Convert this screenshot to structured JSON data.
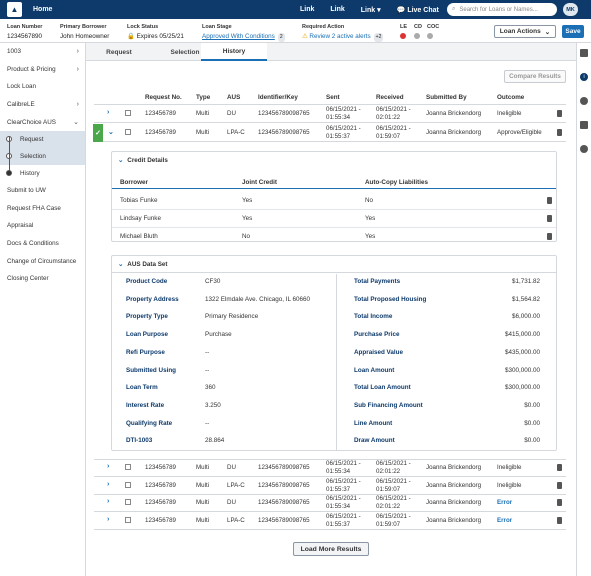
{
  "topbar": {
    "home": "Home",
    "links": [
      "Link",
      "Link",
      "Link",
      "Live Chat"
    ],
    "search_placeholder": "Search for Loans or Names...",
    "avatar": "MK"
  },
  "loan": {
    "number_label": "Loan Number",
    "number": "1234567890",
    "borrower_label": "Primary Borrower",
    "borrower": "John Homeowner",
    "lock_label": "Lock Status",
    "lock": "Expires 05/25/21",
    "stage_label": "Loan Stage",
    "stage": "Approved With Conditions",
    "stage_count": "2",
    "required_label": "Required Action",
    "required": "Review 2 active alerts",
    "required_count": "+2",
    "le": "LE",
    "cd": "CD",
    "coc": "COC",
    "actions": "Loan Actions",
    "save": "Save"
  },
  "sidebar": {
    "items": [
      {
        "label": "1003",
        "chev": "›"
      },
      {
        "label": "Product & Pricing",
        "chev": "›"
      },
      {
        "label": "Lock Loan",
        "chev": ""
      },
      {
        "label": "CalibreLE",
        "chev": "›"
      },
      {
        "label": "ClearChoice AUS",
        "chev": "⌄"
      }
    ],
    "subitems": [
      "Request",
      "Selection",
      "History"
    ],
    "items2": [
      "Submit to UW",
      "Request FHA Case",
      "Appraisal",
      "Docs & Conditions",
      "Change of Circumstance",
      "Closing Center"
    ]
  },
  "tabs": [
    "Request",
    "Selection",
    "History"
  ],
  "compare": "Compare Results",
  "columns": [
    "Request No.",
    "Type",
    "AUS",
    "Identifier/Key",
    "Sent",
    "Received",
    "Submitted By",
    "Outcome"
  ],
  "rows_top": [
    {
      "req": "123456789",
      "type": "Multi",
      "aus": "DU",
      "key": "123456789098765",
      "sent1": "06/15/2021 -",
      "sent2": "01:55:34",
      "rec1": "06/15/2021 -",
      "rec2": "02:01:22",
      "by": "Joanna Brickendorg",
      "outcome": "Ineligible"
    },
    {
      "req": "123456789",
      "type": "Multi",
      "aus": "LPA-C",
      "key": "123456789098765",
      "sent1": "06/15/2021 -",
      "sent2": "01:55:37",
      "rec1": "06/15/2021 -",
      "rec2": "01:59:07",
      "by": "Joanna Brickendorg",
      "outcome": "Approve/Eligible"
    }
  ],
  "credit": {
    "title": "Credit Details",
    "cols": [
      "Borrower",
      "Joint Credit",
      "Auto-Copy Liabilities"
    ],
    "rows": [
      {
        "name": "Tobias Funke",
        "joint": "Yes",
        "auto": "No"
      },
      {
        "name": "Lindsay Funke",
        "joint": "Yes",
        "auto": "Yes"
      },
      {
        "name": "Michael Bluth",
        "joint": "No",
        "auto": "Yes"
      }
    ]
  },
  "aus": {
    "title": "AUS Data Set",
    "left": [
      {
        "k": "Product Code",
        "v": "CF30"
      },
      {
        "k": "Property Address",
        "v": "1322 Elmdale Ave. Chicago, IL 60660"
      },
      {
        "k": "Property Type",
        "v": "Primary Residence"
      },
      {
        "k": "Loan Purpose",
        "v": "Purchase"
      },
      {
        "k": "Refi Purpose",
        "v": "--"
      },
      {
        "k": "Submitted Using",
        "v": "--"
      },
      {
        "k": "Loan Term",
        "v": "360"
      },
      {
        "k": "Interest Rate",
        "v": "3.250"
      },
      {
        "k": "Qualifying Rate",
        "v": "--"
      },
      {
        "k": "DTI-1003",
        "v": "28.864"
      }
    ],
    "right": [
      {
        "k": "Total Payments",
        "v": "$1,731.82"
      },
      {
        "k": "Total Proposed Housing",
        "v": "$1,564.82"
      },
      {
        "k": "Total Income",
        "v": "$6,000.00"
      },
      {
        "k": "Purchase Price",
        "v": "$415,000.00"
      },
      {
        "k": "Appraised Value",
        "v": "$435,000.00"
      },
      {
        "k": "Loan Amount",
        "v": "$300,000.00"
      },
      {
        "k": "Total Loan Amount",
        "v": "$300,000.00"
      },
      {
        "k": "Sub Financing Amount",
        "v": "$0.00"
      },
      {
        "k": "Line Amount",
        "v": "$0.00"
      },
      {
        "k": "Draw Amount",
        "v": "$0.00"
      }
    ]
  },
  "rows_bottom": [
    {
      "req": "123456789",
      "type": "Multi",
      "aus": "DU",
      "key": "123456789098765",
      "sent1": "06/15/2021 -",
      "sent2": "01:55:34",
      "rec1": "06/15/2021 -",
      "rec2": "02:01:22",
      "by": "Joanna Brickendorg",
      "outcome": "Ineligible"
    },
    {
      "req": "123456789",
      "type": "Multi",
      "aus": "LPA-C",
      "key": "123456789098765",
      "sent1": "06/15/2021 -",
      "sent2": "01:55:37",
      "rec1": "06/15/2021 -",
      "rec2": "01:59:07",
      "by": "Joanna Brickendorg",
      "outcome": "Ineligible"
    },
    {
      "req": "123456789",
      "type": "Multi",
      "aus": "DU",
      "key": "123456789098765",
      "sent1": "06/15/2021 -",
      "sent2": "01:55:34",
      "rec1": "06/15/2021 -",
      "rec2": "02:01:22",
      "by": "Joanna Brickendorg",
      "outcome": "Error"
    },
    {
      "req": "123456789",
      "type": "Multi",
      "aus": "LPA-C",
      "key": "123456789098765",
      "sent1": "06/15/2021 -",
      "sent2": "01:55:37",
      "rec1": "06/15/2021 -",
      "rec2": "01:59:07",
      "by": "Joanna Brickendorg",
      "outcome": "Error"
    }
  ],
  "load_more": "Load More Results"
}
